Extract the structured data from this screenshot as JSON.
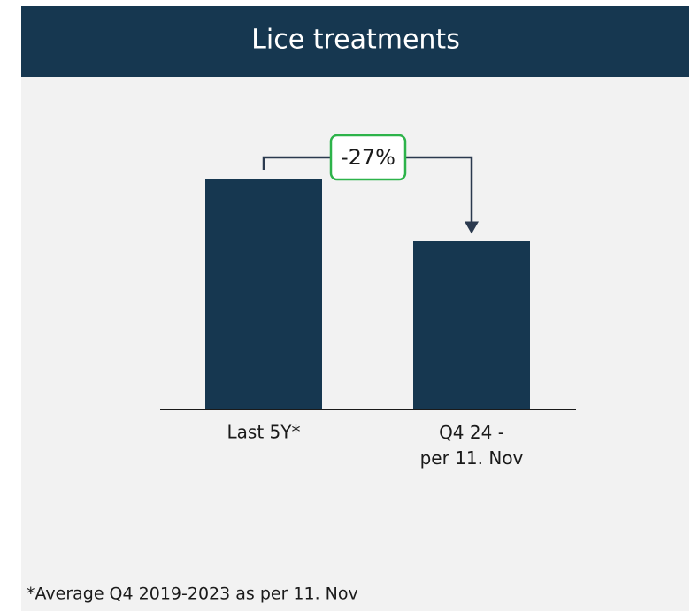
{
  "chart_data": {
    "type": "bar",
    "title": "Lice treatments",
    "categories": [
      "Last 5Y*",
      "Q4 24 - per 11. Nov"
    ],
    "values": [
      100,
      73
    ],
    "color": "#163750",
    "annotation": "-27%",
    "footnote": "*Average Q4 2019-2023 as per 11. Nov"
  }
}
